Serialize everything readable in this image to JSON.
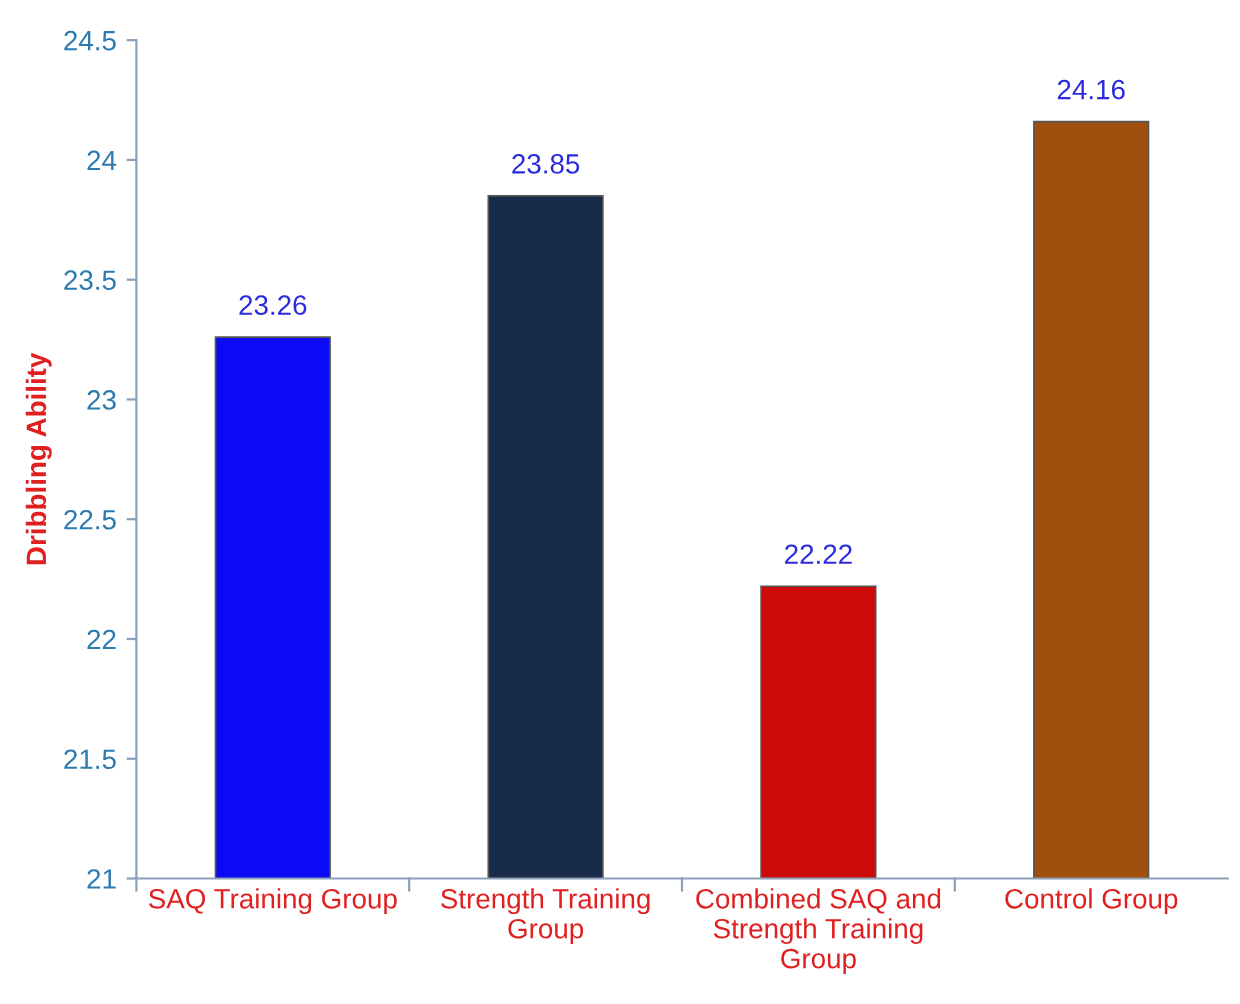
{
  "chart_data": {
    "type": "bar",
    "ylabel": "Dribbling Ability",
    "categories": [
      "SAQ Training Group",
      "Strength Training\nGroup",
      "Combined SAQ and\nStrength Training\nGroup",
      "Control Group"
    ],
    "values": [
      23.26,
      23.85,
      22.22,
      24.16
    ],
    "colors": [
      "#0a0af5",
      "#182b49",
      "#cc0a0a",
      "#a0500e"
    ],
    "data_labels": true,
    "ylim": [
      21,
      24.5
    ],
    "yticks": [
      21,
      21.5,
      22,
      22.5,
      23,
      23.5,
      24,
      24.5
    ],
    "grid": false,
    "legend": false
  }
}
